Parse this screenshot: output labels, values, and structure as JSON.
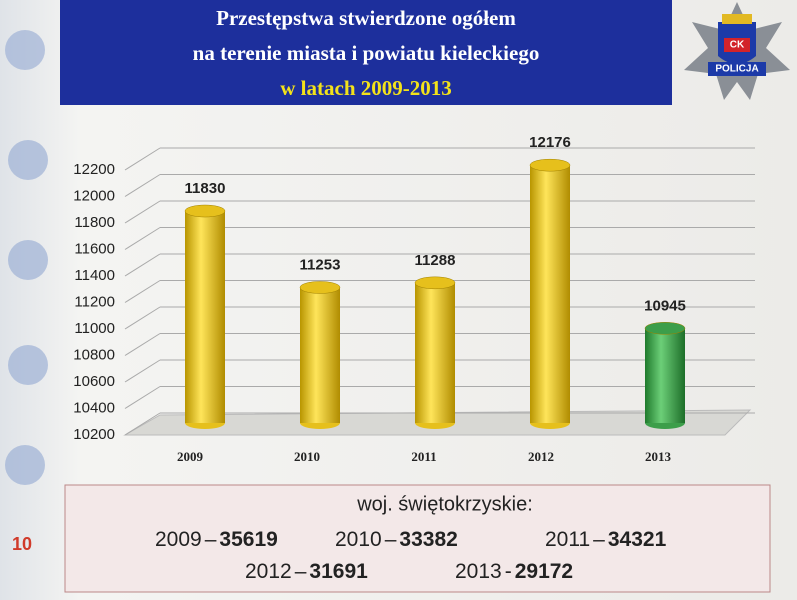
{
  "chart_data": {
    "type": "bar",
    "title": [
      "Przestępstwa stwierdzone ogółem",
      "na terenie miasta i powiatu kieleckiego"
    ],
    "subtitle": "w latach 2009-2013",
    "categories": [
      "2009",
      "2010",
      "2011",
      "2012",
      "2013"
    ],
    "values": [
      11830,
      11253,
      11288,
      12176,
      10945
    ],
    "colors": [
      "#e6c01c",
      "#e6c01c",
      "#e6c01c",
      "#e6c01c",
      "#3c9e4a"
    ],
    "ylim": [
      10200,
      12200
    ],
    "yticks": [
      10200,
      10400,
      10600,
      10800,
      11000,
      11200,
      11400,
      11600,
      11800,
      12000,
      12200
    ],
    "grid": true
  },
  "summary": {
    "title": "woj. świętokrzyskie:",
    "items": [
      {
        "year": "2009",
        "sep": "–",
        "value": 35619
      },
      {
        "year": "2010",
        "sep": "–",
        "value": 33382
      },
      {
        "year": "2011",
        "sep": "–",
        "value": 34321
      },
      {
        "year": "2012",
        "sep": "–",
        "value": 31691
      },
      {
        "year": "2013",
        "sep": "-",
        "value": 29172
      }
    ]
  },
  "slide_number": "10",
  "logo": {
    "emblem": "CK",
    "label": "POLICJA"
  }
}
